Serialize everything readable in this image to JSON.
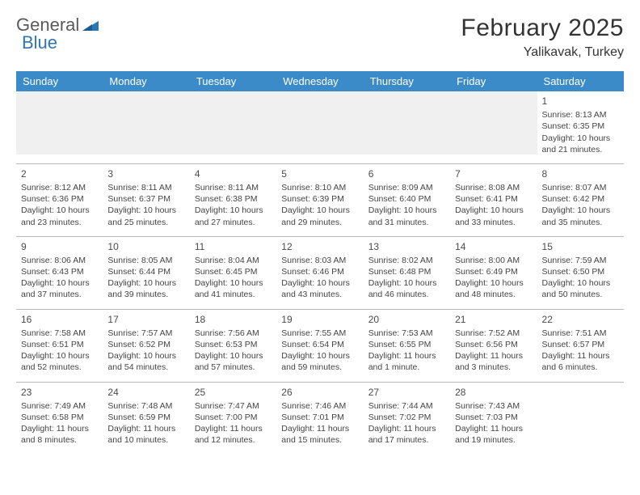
{
  "logo": {
    "word1": "General",
    "word2": "Blue"
  },
  "title": "February 2025",
  "location": "Yalikavak, Turkey",
  "colors": {
    "header_bg": "#3b8bc9",
    "header_text": "#ffffff",
    "alt_row_bg": "#f0f0f0",
    "border": "#b8b8b8",
    "text": "#333333",
    "logo_gray": "#5a5a5a",
    "logo_blue": "#2e75b6"
  },
  "day_headers": [
    "Sunday",
    "Monday",
    "Tuesday",
    "Wednesday",
    "Thursday",
    "Friday",
    "Saturday"
  ],
  "weeks": [
    [
      null,
      null,
      null,
      null,
      null,
      null,
      {
        "n": "1",
        "sr": "Sunrise: 8:13 AM",
        "ss": "Sunset: 6:35 PM",
        "dl": "Daylight: 10 hours and 21 minutes."
      }
    ],
    [
      {
        "n": "2",
        "sr": "Sunrise: 8:12 AM",
        "ss": "Sunset: 6:36 PM",
        "dl": "Daylight: 10 hours and 23 minutes."
      },
      {
        "n": "3",
        "sr": "Sunrise: 8:11 AM",
        "ss": "Sunset: 6:37 PM",
        "dl": "Daylight: 10 hours and 25 minutes."
      },
      {
        "n": "4",
        "sr": "Sunrise: 8:11 AM",
        "ss": "Sunset: 6:38 PM",
        "dl": "Daylight: 10 hours and 27 minutes."
      },
      {
        "n": "5",
        "sr": "Sunrise: 8:10 AM",
        "ss": "Sunset: 6:39 PM",
        "dl": "Daylight: 10 hours and 29 minutes."
      },
      {
        "n": "6",
        "sr": "Sunrise: 8:09 AM",
        "ss": "Sunset: 6:40 PM",
        "dl": "Daylight: 10 hours and 31 minutes."
      },
      {
        "n": "7",
        "sr": "Sunrise: 8:08 AM",
        "ss": "Sunset: 6:41 PM",
        "dl": "Daylight: 10 hours and 33 minutes."
      },
      {
        "n": "8",
        "sr": "Sunrise: 8:07 AM",
        "ss": "Sunset: 6:42 PM",
        "dl": "Daylight: 10 hours and 35 minutes."
      }
    ],
    [
      {
        "n": "9",
        "sr": "Sunrise: 8:06 AM",
        "ss": "Sunset: 6:43 PM",
        "dl": "Daylight: 10 hours and 37 minutes."
      },
      {
        "n": "10",
        "sr": "Sunrise: 8:05 AM",
        "ss": "Sunset: 6:44 PM",
        "dl": "Daylight: 10 hours and 39 minutes."
      },
      {
        "n": "11",
        "sr": "Sunrise: 8:04 AM",
        "ss": "Sunset: 6:45 PM",
        "dl": "Daylight: 10 hours and 41 minutes."
      },
      {
        "n": "12",
        "sr": "Sunrise: 8:03 AM",
        "ss": "Sunset: 6:46 PM",
        "dl": "Daylight: 10 hours and 43 minutes."
      },
      {
        "n": "13",
        "sr": "Sunrise: 8:02 AM",
        "ss": "Sunset: 6:48 PM",
        "dl": "Daylight: 10 hours and 46 minutes."
      },
      {
        "n": "14",
        "sr": "Sunrise: 8:00 AM",
        "ss": "Sunset: 6:49 PM",
        "dl": "Daylight: 10 hours and 48 minutes."
      },
      {
        "n": "15",
        "sr": "Sunrise: 7:59 AM",
        "ss": "Sunset: 6:50 PM",
        "dl": "Daylight: 10 hours and 50 minutes."
      }
    ],
    [
      {
        "n": "16",
        "sr": "Sunrise: 7:58 AM",
        "ss": "Sunset: 6:51 PM",
        "dl": "Daylight: 10 hours and 52 minutes."
      },
      {
        "n": "17",
        "sr": "Sunrise: 7:57 AM",
        "ss": "Sunset: 6:52 PM",
        "dl": "Daylight: 10 hours and 54 minutes."
      },
      {
        "n": "18",
        "sr": "Sunrise: 7:56 AM",
        "ss": "Sunset: 6:53 PM",
        "dl": "Daylight: 10 hours and 57 minutes."
      },
      {
        "n": "19",
        "sr": "Sunrise: 7:55 AM",
        "ss": "Sunset: 6:54 PM",
        "dl": "Daylight: 10 hours and 59 minutes."
      },
      {
        "n": "20",
        "sr": "Sunrise: 7:53 AM",
        "ss": "Sunset: 6:55 PM",
        "dl": "Daylight: 11 hours and 1 minute."
      },
      {
        "n": "21",
        "sr": "Sunrise: 7:52 AM",
        "ss": "Sunset: 6:56 PM",
        "dl": "Daylight: 11 hours and 3 minutes."
      },
      {
        "n": "22",
        "sr": "Sunrise: 7:51 AM",
        "ss": "Sunset: 6:57 PM",
        "dl": "Daylight: 11 hours and 6 minutes."
      }
    ],
    [
      {
        "n": "23",
        "sr": "Sunrise: 7:49 AM",
        "ss": "Sunset: 6:58 PM",
        "dl": "Daylight: 11 hours and 8 minutes."
      },
      {
        "n": "24",
        "sr": "Sunrise: 7:48 AM",
        "ss": "Sunset: 6:59 PM",
        "dl": "Daylight: 11 hours and 10 minutes."
      },
      {
        "n": "25",
        "sr": "Sunrise: 7:47 AM",
        "ss": "Sunset: 7:00 PM",
        "dl": "Daylight: 11 hours and 12 minutes."
      },
      {
        "n": "26",
        "sr": "Sunrise: 7:46 AM",
        "ss": "Sunset: 7:01 PM",
        "dl": "Daylight: 11 hours and 15 minutes."
      },
      {
        "n": "27",
        "sr": "Sunrise: 7:44 AM",
        "ss": "Sunset: 7:02 PM",
        "dl": "Daylight: 11 hours and 17 minutes."
      },
      {
        "n": "28",
        "sr": "Sunrise: 7:43 AM",
        "ss": "Sunset: 7:03 PM",
        "dl": "Daylight: 11 hours and 19 minutes."
      },
      null
    ]
  ]
}
